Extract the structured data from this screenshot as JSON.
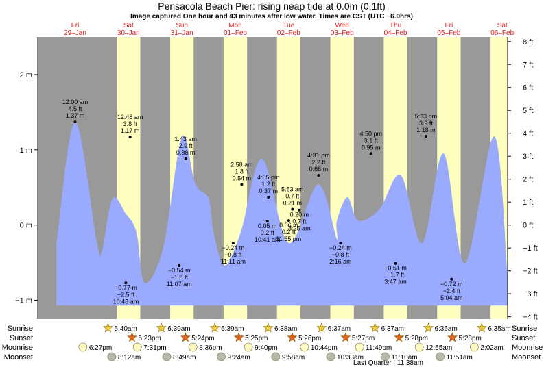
{
  "title": "Pensacola Beach Pier: rising  neap tide at 0.0m (0.1ft)",
  "subtitle": "Image captured One hour and 43 minutes after low water. Times are CST (UTC −6.0hrs)",
  "days": [
    {
      "dow": "Fri",
      "date": "29–Jan"
    },
    {
      "dow": "Sat",
      "date": "30–Jan"
    },
    {
      "dow": "Sun",
      "date": "31–Jan"
    },
    {
      "dow": "Mon",
      "date": "01–Feb"
    },
    {
      "dow": "Tue",
      "date": "02–Feb"
    },
    {
      "dow": "Wed",
      "date": "03–Feb"
    },
    {
      "dow": "Thu",
      "date": "04–Feb"
    },
    {
      "dow": "Fri",
      "date": "05–Feb"
    },
    {
      "dow": "Sat",
      "date": "06–Feb"
    }
  ],
  "colors": {
    "night": "#999999",
    "day": "#ffffc0",
    "water": "#9aaaff",
    "ink": "#000000",
    "dayLabel": "#e02020",
    "sun": "#f0d040",
    "sunset": "#e06020",
    "moon": "#fff8c0",
    "moonset": "#b8b8a8"
  },
  "chart_data": {
    "type": "area",
    "title": "Pensacola Beach Pier: rising  neap tide at 0.0m (0.1ft)",
    "yleft": {
      "unit": "m",
      "ticks": [
        "2 m",
        "1 m",
        "0 m",
        "−1 m"
      ],
      "values": [
        2,
        1,
        0,
        -1
      ],
      "range": [
        -1.25,
        2.5
      ]
    },
    "yright": {
      "unit": "ft",
      "ticks": [
        "8 ft",
        "7 ft",
        "6 ft",
        "5 ft",
        "4 ft",
        "3 ft",
        "2 ft",
        "1 ft",
        "0 ft",
        "−1 ft",
        "−2 ft",
        "−3 ft",
        "−4 ft"
      ],
      "values": [
        8,
        7,
        6,
        5,
        4,
        3,
        2,
        1,
        0,
        -1,
        -2,
        -3,
        -4
      ]
    },
    "x_range_days": [
      -0.2,
      8.6
    ],
    "curve": [
      [
        0.15,
        -0.25
      ],
      [
        0.5,
        1.37
      ],
      [
        0.9,
        -0.2
      ],
      [
        1.0,
        -0.35
      ],
      [
        1.2,
        0.35
      ],
      [
        1.45,
        0.15
      ],
      [
        1.65,
        -0.1
      ],
      [
        1.8,
        -0.77
      ],
      [
        2.15,
        -0.3
      ],
      [
        2.5,
        1.17
      ],
      [
        2.75,
        0.55
      ],
      [
        3.0,
        0.35
      ],
      [
        3.1,
        -0.12
      ],
      [
        3.3,
        -0.54
      ],
      [
        3.6,
        -0.1
      ],
      [
        4.0,
        0.88
      ],
      [
        4.5,
        -0.24
      ],
      [
        5.05,
        0.54
      ],
      [
        5.4,
        -0.18
      ],
      [
        5.4,
        0.05
      ],
      [
        5.6,
        0.37
      ],
      [
        5.8,
        0.06
      ],
      [
        6.2,
        0.21
      ],
      [
        6.6,
        0.66
      ],
      [
        7.0,
        -0.24
      ],
      [
        7.4,
        0.95
      ],
      [
        7.8,
        -0.51
      ],
      [
        8.35,
        1.18
      ],
      [
        8.6,
        -0.72
      ]
    ],
    "sun_windows": [
      [
        1.28,
        1.72
      ],
      [
        2.28,
        2.72
      ],
      [
        3.28,
        3.72
      ],
      [
        4.28,
        4.72
      ],
      [
        5.28,
        5.72
      ],
      [
        6.28,
        6.72
      ],
      [
        7.28,
        7.72
      ],
      [
        8.28,
        8.72
      ]
    ],
    "points": [
      {
        "x": 0.5,
        "y": 1.37,
        "time": "12:00 am",
        "ft": "4.5 ft",
        "m": "1.37 m",
        "pos": "above"
      },
      {
        "x": 1.45,
        "y": -0.77,
        "time": "10:48 am",
        "ft": "−2.5 ft",
        "m": "−0.77 m",
        "pos": "below"
      },
      {
        "x": 1.53,
        "y": 1.17,
        "time": "12:48 am",
        "ft": "3.8 ft",
        "m": "1.17 m",
        "pos": "above"
      },
      {
        "x": 2.45,
        "y": -0.54,
        "time": "11:07 am",
        "ft": "−1.8 ft",
        "m": "−0.54 m",
        "pos": "below"
      },
      {
        "x": 2.57,
        "y": 0.88,
        "time": "1:43 am",
        "ft": "2.9 ft",
        "m": "0.88 m",
        "pos": "above"
      },
      {
        "x": 3.46,
        "y": -0.24,
        "time": "11:11 am",
        "ft": "−0.8 ft",
        "m": "−0.24 m",
        "pos": "below"
      },
      {
        "x": 3.62,
        "y": 0.54,
        "time": "2:58 am",
        "ft": "1.8 ft",
        "m": "0.54 m",
        "pos": "above"
      },
      {
        "x": 4.1,
        "y": 0.05,
        "time": "10:41 am",
        "ft": "0.2 ft",
        "m": "0.05 m",
        "pos": "below"
      },
      {
        "x": 4.12,
        "y": 0.37,
        "time": "4:55 pm",
        "ft": "1.2 ft",
        "m": "0.37 m",
        "pos": "above"
      },
      {
        "x": 4.5,
        "y": 0.06,
        "time": "11:55 pm",
        "ft": "0.2 ft",
        "m": "0.06 m",
        "pos": "below"
      },
      {
        "x": 4.57,
        "y": 0.21,
        "time": "5:53 am",
        "ft": "0.7 ft",
        "m": "0.21 m",
        "pos": "above"
      },
      {
        "x": 4.7,
        "y": 0.2,
        "time": "8:25 am",
        "ft": "0.7 ft",
        "m": "0.20 m",
        "pos": "below"
      },
      {
        "x": 5.06,
        "y": 0.66,
        "time": "4:31 pm",
        "ft": "2.2 ft",
        "m": "0.66 m",
        "pos": "above"
      },
      {
        "x": 5.47,
        "y": -0.24,
        "time": "2:16 am",
        "ft": "−0.8 ft",
        "m": "−0.24 m",
        "pos": "below"
      },
      {
        "x": 6.04,
        "y": 0.95,
        "time": "4:50 pm",
        "ft": "3.1 ft",
        "m": "0.95 m",
        "pos": "above"
      },
      {
        "x": 6.5,
        "y": -0.51,
        "time": "3:47 am",
        "ft": "−1.7 ft",
        "m": "−0.51 m",
        "pos": "below"
      },
      {
        "x": 7.07,
        "y": 1.18,
        "time": "5:33 pm",
        "ft": "3.9 ft",
        "m": "1.18 m",
        "pos": "above"
      },
      {
        "x": 7.55,
        "y": -0.72,
        "time": "5:04 am",
        "ft": "−2.4 ft",
        "m": "−0.72 m",
        "pos": "below"
      }
    ]
  },
  "rows": [
    {
      "label": "Sunrise",
      "kind": "sunrise",
      "items": [
        {
          "x": 1.27,
          "t": "6:40am"
        },
        {
          "x": 2.27,
          "t": "6:39am"
        },
        {
          "x": 3.27,
          "t": "6:39am"
        },
        {
          "x": 4.27,
          "t": "6:38am"
        },
        {
          "x": 5.27,
          "t": "6:37am"
        },
        {
          "x": 6.27,
          "t": "6:37am"
        },
        {
          "x": 7.27,
          "t": "6:36am"
        },
        {
          "x": 8.27,
          "t": "6:35am"
        }
      ]
    },
    {
      "label": "Sunset",
      "kind": "sunset",
      "items": [
        {
          "x": 1.72,
          "t": "5:23pm"
        },
        {
          "x": 2.72,
          "t": "5:24pm"
        },
        {
          "x": 3.72,
          "t": "5:25pm"
        },
        {
          "x": 4.72,
          "t": "5:26pm"
        },
        {
          "x": 5.72,
          "t": "5:27pm"
        },
        {
          "x": 6.72,
          "t": "5:28pm"
        },
        {
          "x": 7.72,
          "t": "5:28pm"
        }
      ]
    },
    {
      "label": "Moonrise",
      "kind": "moonrise",
      "items": [
        {
          "x": 0.8,
          "t": "6:27pm"
        },
        {
          "x": 1.82,
          "t": "7:31pm"
        },
        {
          "x": 2.86,
          "t": "8:36pm"
        },
        {
          "x": 3.9,
          "t": "9:40pm"
        },
        {
          "x": 4.95,
          "t": "10:44pm"
        },
        {
          "x": 5.98,
          "t": "11:49pm"
        },
        {
          "x": 7.1,
          "t": "12:55am"
        },
        {
          "x": 8.13,
          "t": "2:02am"
        }
      ]
    },
    {
      "label": "Moonset",
      "kind": "moonset",
      "items": [
        {
          "x": 1.34,
          "t": "8:12am"
        },
        {
          "x": 2.37,
          "t": "8:49am"
        },
        {
          "x": 3.39,
          "t": "9:24am"
        },
        {
          "x": 4.41,
          "t": "9:58am"
        },
        {
          "x": 5.44,
          "t": "10:33am"
        },
        {
          "x": 6.46,
          "t": "11:10am"
        },
        {
          "x": 7.49,
          "t": "11:51am"
        }
      ]
    }
  ],
  "footer": "Last Quarter | 11:38am"
}
